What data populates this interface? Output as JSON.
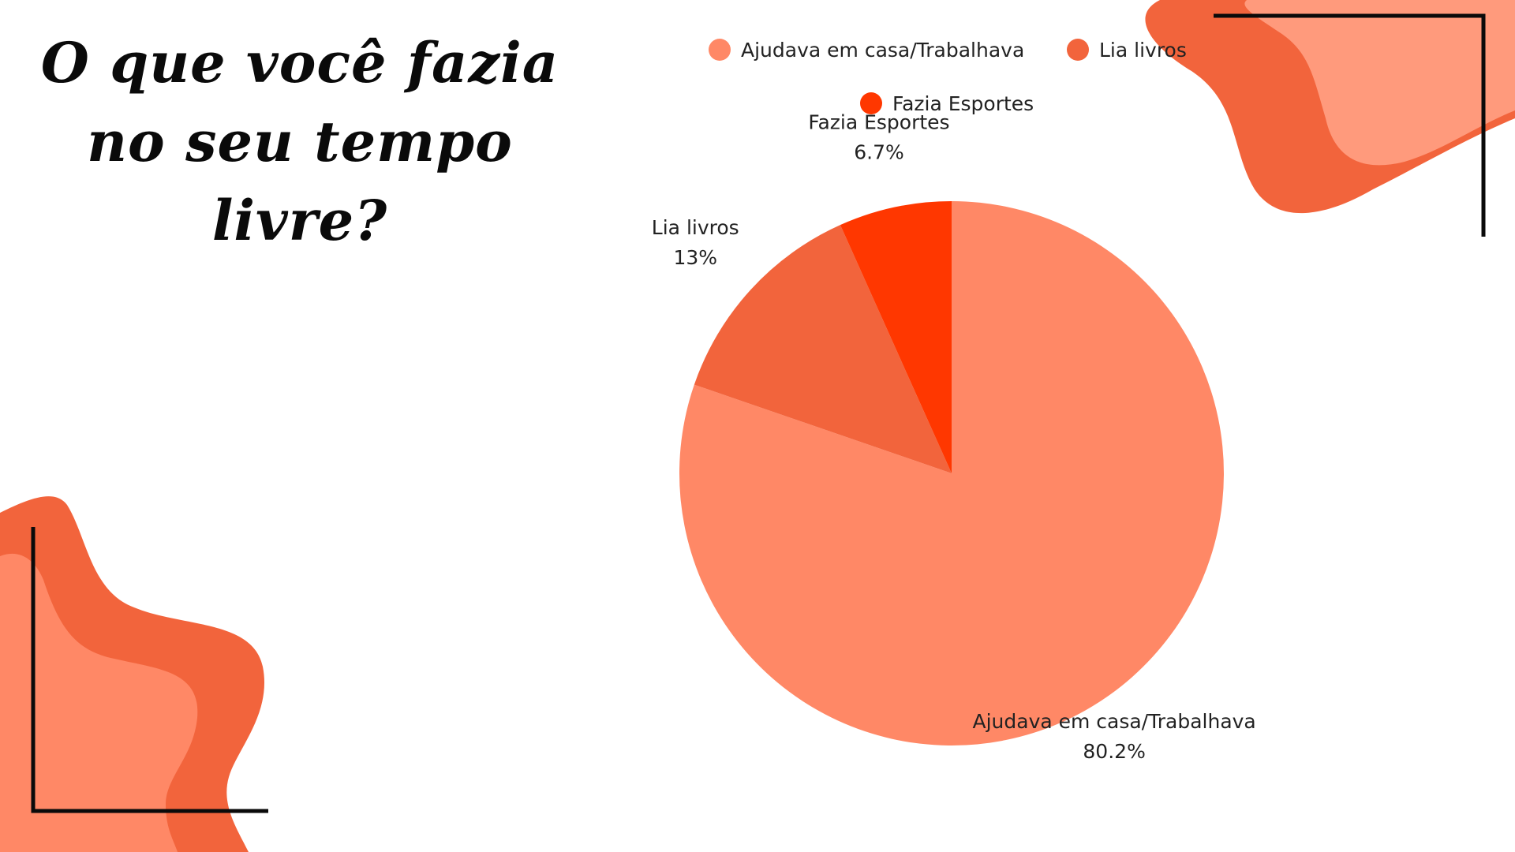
{
  "title": "O que você fazia no seu tempo livre?",
  "colors": {
    "blob_dark": "#F2643C",
    "blob_light": "#FF9A7C",
    "frame_line": "#0a0a0a",
    "label_text": "#222222"
  },
  "chart_data": {
    "type": "pie",
    "title": "O que você fazia no seu tempo livre?",
    "slices": [
      {
        "label": "Ajudava em casa/Trabalhava",
        "value": 80.2,
        "display": "80.2%",
        "color": "#FF8866"
      },
      {
        "label": "Lia livros",
        "value": 13,
        "display": "13%",
        "color": "#F2643C"
      },
      {
        "label": "Fazia Esportes",
        "value": 6.7,
        "display": "6.7%",
        "color": "#FF3700"
      }
    ],
    "legend": {
      "placement": "top",
      "entries": [
        "Ajudava em casa/Trabalhava",
        "Lia livros",
        "Fazia Esportes"
      ]
    }
  }
}
